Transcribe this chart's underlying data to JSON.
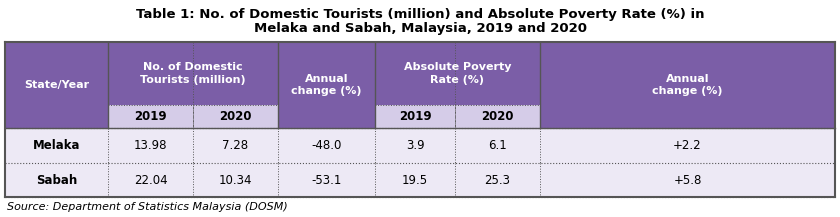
{
  "title_line1": "Table 1: No. of Domestic Tourists (million) and Absolute Poverty Rate (%) in",
  "title_line2": "Melaka and Sabah, Malaysia, 2019 and 2020",
  "source": "Source: Department of Statistics Malaysia (DOSM)",
  "header_bg": "#7B5EA7",
  "header_text": "#FFFFFF",
  "subheader_bg": "#D5CCE8",
  "row_bg": "#EDE9F5",
  "border_color": "#555555",
  "rows": [
    [
      "Melaka",
      "13.98",
      "7.28",
      "-48.0",
      "3.9",
      "6.1",
      "+2.2"
    ],
    [
      "Sabah",
      "22.04",
      "10.34",
      "-53.1",
      "19.5",
      "25.3",
      "+5.8"
    ]
  ],
  "figsize": [
    8.4,
    2.17
  ],
  "dpi": 100
}
